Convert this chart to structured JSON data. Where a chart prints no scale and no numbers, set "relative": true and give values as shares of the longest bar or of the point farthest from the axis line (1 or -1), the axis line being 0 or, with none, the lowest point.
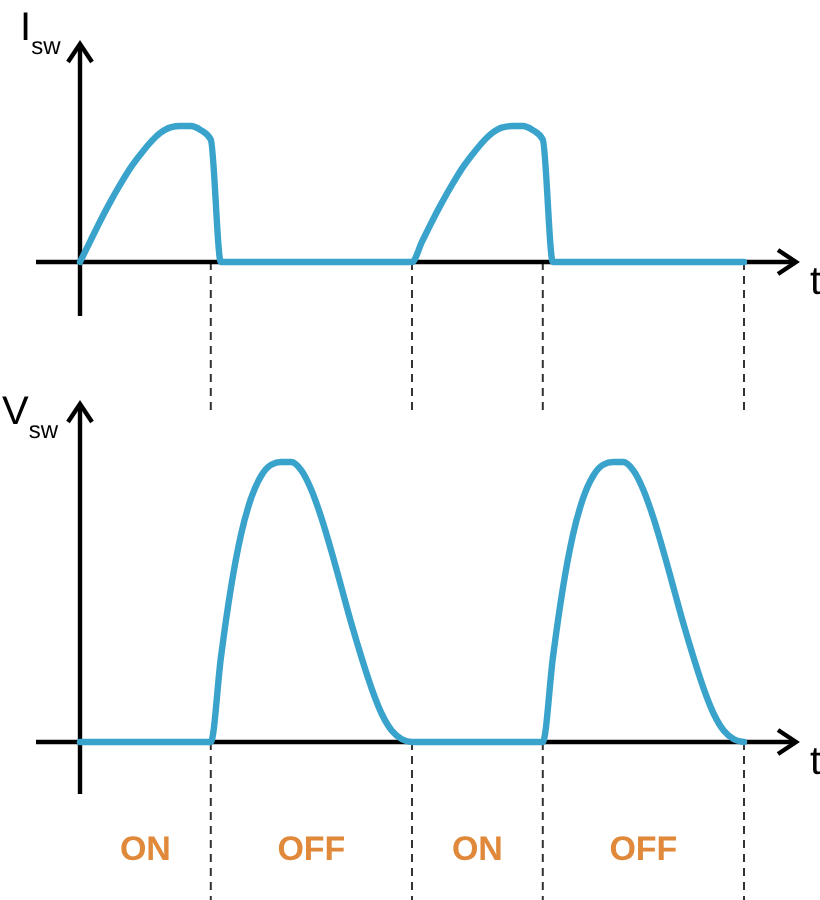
{
  "chart_data": [
    {
      "type": "line",
      "relative": true,
      "ylabel": "I$_{sw}$",
      "xlabel": "t",
      "categories": [
        null,
        null,
        null,
        null,
        null,
        null,
        null,
        null,
        null,
        null,
        null,
        null,
        null,
        null,
        null,
        null,
        null,
        null,
        null,
        null,
        null,
        null,
        null,
        null,
        null,
        null,
        null,
        null,
        null,
        null,
        null,
        null,
        null,
        null,
        null,
        null,
        null,
        null,
        null,
        null,
        null,
        null,
        null,
        null,
        null,
        null,
        null,
        null,
        null,
        null,
        null,
        null,
        null,
        null,
        null,
        null,
        null,
        null,
        null,
        null,
        null,
        null,
        null,
        null,
        null,
        null,
        null
      ],
      "series": [
        {
          "color": "#3aa3cc",
          "values": [
            0,
            0.15,
            0.3,
            0.44,
            0.57,
            0.69,
            0.79,
            0.88,
            0.95,
            0.99,
            1,
            1,
            0.97,
            0.9,
            0,
            0,
            0,
            0,
            0,
            0,
            0,
            0,
            0,
            0,
            0,
            0,
            0,
            0,
            0,
            0,
            0,
            0,
            0,
            0,
            0.15,
            0.3,
            0.44,
            0.57,
            0.69,
            0.79,
            0.88,
            0.95,
            0.99,
            1,
            1,
            0.97,
            0.9,
            0,
            0,
            0,
            0,
            0,
            0,
            0,
            0,
            0,
            0,
            0,
            0,
            0,
            0,
            0,
            0,
            0,
            0,
            0,
            0
          ]
        }
      ],
      "line_style": "solid",
      "marker": "none"
    },
    {
      "type": "line",
      "relative": true,
      "ylabel": "V$_{sw}$",
      "xlabel": "t",
      "categories": [
        null,
        null,
        null,
        null,
        null,
        null,
        null,
        null,
        null,
        null,
        null,
        null,
        null,
        null,
        null,
        null,
        null,
        null,
        null,
        null,
        null,
        null,
        null,
        null,
        null,
        null,
        null,
        null,
        null,
        null,
        null,
        null,
        null,
        null,
        null,
        null,
        null,
        null,
        null,
        null,
        null,
        null,
        null,
        null,
        null,
        null,
        null,
        null,
        null,
        null,
        null,
        null,
        null,
        null,
        null,
        null,
        null,
        null,
        null,
        null,
        null,
        null,
        null,
        null,
        null,
        null,
        null
      ],
      "series": [
        {
          "color": "#3aa3cc",
          "values": [
            0,
            0,
            0,
            0,
            0,
            0,
            0,
            0,
            0,
            0,
            0,
            0,
            0,
            0,
            0.3,
            0.55,
            0.74,
            0.87,
            0.95,
            0.99,
            1,
            1,
            0.97,
            0.9,
            0.8,
            0.68,
            0.55,
            0.42,
            0.3,
            0.19,
            0.1,
            0.04,
            0.01,
            0,
            0,
            0,
            0,
            0,
            0,
            0,
            0,
            0,
            0,
            0,
            0,
            0,
            0,
            0.3,
            0.55,
            0.74,
            0.87,
            0.95,
            0.99,
            1,
            1,
            0.97,
            0.9,
            0.8,
            0.68,
            0.55,
            0.42,
            0.3,
            0.19,
            0.1,
            0.04,
            0.01,
            0
          ]
        }
      ],
      "annotations": [
        "ON",
        "OFF",
        "ON",
        "OFF"
      ],
      "line_style": "solid",
      "marker": "none"
    }
  ]
}
